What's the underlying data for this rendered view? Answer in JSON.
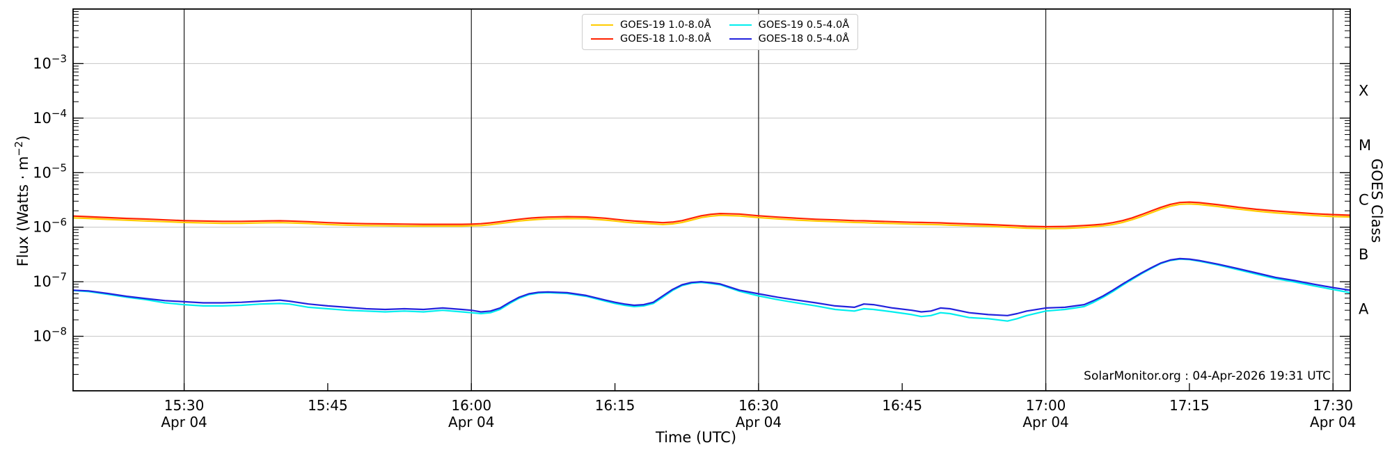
{
  "axes": {
    "x_label": "Time (UTC)",
    "y_label_main": "Flux (Watts · m",
    "y_label_sup": "−2",
    "y_label_close": ")",
    "right_label": "GOES Class"
  },
  "legend": {
    "items": [
      {
        "label": "GOES-19 1.0-8.0Å"
      },
      {
        "label": "GOES-18 1.0-8.0Å"
      },
      {
        "label": "GOES-19 0.5-4.0Å"
      },
      {
        "label": "GOES-18 0.5-4.0Å"
      }
    ]
  },
  "watermark": "SolarMonitor.org : 04-Apr-2026 19:31 UTC",
  "chart_data": {
    "type": "line",
    "x_unit": "minutes after 15:00 UTC",
    "x_range": [
      18.4,
      151.8
    ],
    "y_scale": "log",
    "y_range_exponents": [
      -9,
      -2
    ],
    "ylabel": "Flux (Watts · m−2)",
    "xlabel": "Time (UTC)",
    "legend_position": "top-center",
    "grid": {
      "h_decades": [
        -3,
        -4,
        -5,
        -6,
        -7,
        -8
      ],
      "v_minutes": [
        30,
        60,
        90,
        120,
        150
      ]
    },
    "y_tick_exponents": [
      -3,
      -4,
      -5,
      -6,
      -7,
      -8
    ],
    "x_ticks": [
      {
        "t": 30,
        "label": "15:30",
        "date": "Apr 04"
      },
      {
        "t": 45,
        "label": "15:45"
      },
      {
        "t": 60,
        "label": "16:00",
        "date": "Apr 04"
      },
      {
        "t": 75,
        "label": "16:15"
      },
      {
        "t": 90,
        "label": "16:30",
        "date": "Apr 04"
      },
      {
        "t": 105,
        "label": "16:45"
      },
      {
        "t": 120,
        "label": "17:00",
        "date": "Apr 04"
      },
      {
        "t": 135,
        "label": "17:15"
      },
      {
        "t": 150,
        "label": "17:30",
        "date": "Apr 04"
      }
    ],
    "goes_classes": [
      {
        "label": "A",
        "exp": -7.5
      },
      {
        "label": "B",
        "exp": -6.5
      },
      {
        "label": "C",
        "exp": -5.5
      },
      {
        "label": "M",
        "exp": -4.5
      },
      {
        "label": "X",
        "exp": -3.5
      }
    ],
    "colors": {
      "goes19_long": "#ffcc00",
      "goes18_long": "#ff2200",
      "goes19_short": "#00eeee",
      "goes18_short": "#2222dd",
      "h_grid": "#c4c4c4",
      "v_grid": "#1a1a1a",
      "frame": "#000000"
    },
    "t_minutes": [
      18.4,
      20,
      22,
      24,
      26,
      28,
      30,
      32,
      34,
      36,
      38,
      40,
      41,
      43,
      45,
      47,
      49,
      51,
      53,
      55,
      57,
      59,
      60,
      61,
      62,
      63,
      64,
      65,
      66,
      67,
      68,
      70,
      72,
      74,
      75,
      76,
      77,
      78,
      79,
      80,
      81,
      82,
      83,
      84,
      85,
      86,
      88,
      90,
      92,
      94,
      96,
      98,
      100,
      101,
      102,
      104,
      106,
      107,
      108,
      109,
      110,
      112,
      114,
      116,
      117,
      118,
      120,
      122,
      124,
      125,
      126,
      127,
      128,
      129,
      130,
      131,
      132,
      133,
      134,
      135,
      136,
      138,
      140,
      142,
      144,
      146,
      148,
      150,
      151.8
    ],
    "series": [
      {
        "name": "GOES-19 1.0-8.0Å",
        "color_key": "goes19_long",
        "scale": 1e-06,
        "values": [
          1.48,
          1.45,
          1.39,
          1.34,
          1.3,
          1.26,
          1.22,
          1.2,
          1.18,
          1.18,
          1.2,
          1.21,
          1.2,
          1.17,
          1.12,
          1.09,
          1.07,
          1.06,
          1.05,
          1.05,
          1.05,
          1.05,
          1.06,
          1.07,
          1.11,
          1.17,
          1.23,
          1.3,
          1.35,
          1.39,
          1.42,
          1.44,
          1.43,
          1.35,
          1.3,
          1.24,
          1.2,
          1.18,
          1.15,
          1.12,
          1.15,
          1.22,
          1.35,
          1.5,
          1.59,
          1.65,
          1.61,
          1.5,
          1.42,
          1.35,
          1.3,
          1.26,
          1.22,
          1.21,
          1.19,
          1.17,
          1.14,
          1.13,
          1.12,
          1.11,
          1.09,
          1.06,
          1.04,
          1.0,
          0.98,
          0.96,
          0.94,
          0.95,
          0.99,
          1.02,
          1.06,
          1.12,
          1.22,
          1.37,
          1.57,
          1.83,
          2.13,
          2.42,
          2.63,
          2.67,
          2.61,
          2.39,
          2.16,
          1.97,
          1.83,
          1.73,
          1.64,
          1.57,
          1.54
        ]
      },
      {
        "name": "GOES-18 1.0-8.0Å",
        "color_key": "goes18_long",
        "scale": 1e-06,
        "values": [
          1.6,
          1.56,
          1.5,
          1.45,
          1.41,
          1.36,
          1.32,
          1.3,
          1.28,
          1.28,
          1.3,
          1.31,
          1.3,
          1.26,
          1.21,
          1.18,
          1.16,
          1.15,
          1.14,
          1.13,
          1.13,
          1.13,
          1.14,
          1.16,
          1.2,
          1.26,
          1.33,
          1.4,
          1.46,
          1.5,
          1.53,
          1.56,
          1.54,
          1.46,
          1.4,
          1.34,
          1.3,
          1.27,
          1.24,
          1.21,
          1.24,
          1.32,
          1.46,
          1.62,
          1.72,
          1.78,
          1.74,
          1.62,
          1.53,
          1.46,
          1.4,
          1.36,
          1.32,
          1.31,
          1.29,
          1.26,
          1.23,
          1.22,
          1.21,
          1.2,
          1.18,
          1.15,
          1.12,
          1.08,
          1.06,
          1.04,
          1.02,
          1.03,
          1.07,
          1.1,
          1.14,
          1.21,
          1.32,
          1.48,
          1.7,
          1.98,
          2.3,
          2.62,
          2.84,
          2.89,
          2.82,
          2.58,
          2.33,
          2.13,
          1.98,
          1.87,
          1.77,
          1.7,
          1.66
        ]
      },
      {
        "name": "GOES-19 0.5-4.0Å",
        "color_key": "goes19_short",
        "scale": 1e-08,
        "values": [
          6.9,
          6.6,
          5.9,
          5.2,
          4.7,
          4.1,
          3.8,
          3.6,
          3.6,
          3.7,
          3.9,
          4.0,
          3.9,
          3.4,
          3.2,
          3.0,
          2.9,
          2.8,
          2.9,
          2.8,
          3.0,
          2.8,
          2.7,
          2.6,
          2.7,
          3.1,
          4.0,
          5.0,
          5.8,
          6.2,
          6.3,
          6.1,
          5.4,
          4.4,
          4.0,
          3.7,
          3.5,
          3.6,
          4.0,
          5.2,
          6.9,
          8.5,
          9.4,
          9.7,
          9.3,
          8.8,
          6.7,
          5.5,
          4.7,
          4.1,
          3.6,
          3.1,
          2.9,
          3.2,
          3.1,
          2.8,
          2.5,
          2.3,
          2.4,
          2.7,
          2.6,
          2.2,
          2.1,
          1.9,
          2.1,
          2.4,
          2.9,
          3.1,
          3.5,
          4.2,
          5.2,
          6.6,
          8.6,
          11.0,
          14.0,
          17.5,
          21.5,
          24.5,
          26.0,
          25.5,
          23.8,
          20.3,
          16.8,
          13.8,
          11.4,
          9.9,
          8.4,
          7.2,
          6.3
        ]
      },
      {
        "name": "GOES-18 0.5-4.0Å",
        "color_key": "goes18_short",
        "scale": 1e-08,
        "values": [
          7.0,
          6.8,
          6.1,
          5.4,
          4.9,
          4.5,
          4.3,
          4.1,
          4.1,
          4.2,
          4.4,
          4.6,
          4.4,
          3.9,
          3.6,
          3.4,
          3.2,
          3.1,
          3.2,
          3.1,
          3.3,
          3.1,
          3.0,
          2.8,
          2.9,
          3.3,
          4.2,
          5.2,
          6.0,
          6.4,
          6.5,
          6.3,
          5.6,
          4.6,
          4.2,
          3.9,
          3.7,
          3.8,
          4.2,
          5.5,
          7.2,
          8.8,
          9.7,
          10.0,
          9.6,
          9.1,
          7.0,
          6.0,
          5.2,
          4.6,
          4.1,
          3.6,
          3.4,
          3.9,
          3.8,
          3.3,
          3.0,
          2.8,
          2.9,
          3.3,
          3.2,
          2.7,
          2.5,
          2.4,
          2.6,
          2.9,
          3.3,
          3.4,
          3.8,
          4.5,
          5.5,
          7.0,
          9.0,
          11.5,
          14.5,
          18.0,
          22.0,
          25.0,
          26.5,
          26.0,
          24.5,
          21.0,
          17.5,
          14.5,
          12.0,
          10.5,
          9.0,
          7.8,
          7.0
        ]
      }
    ],
    "annotation": "SolarMonitor.org : 04-Apr-2026 19:31 UTC"
  }
}
